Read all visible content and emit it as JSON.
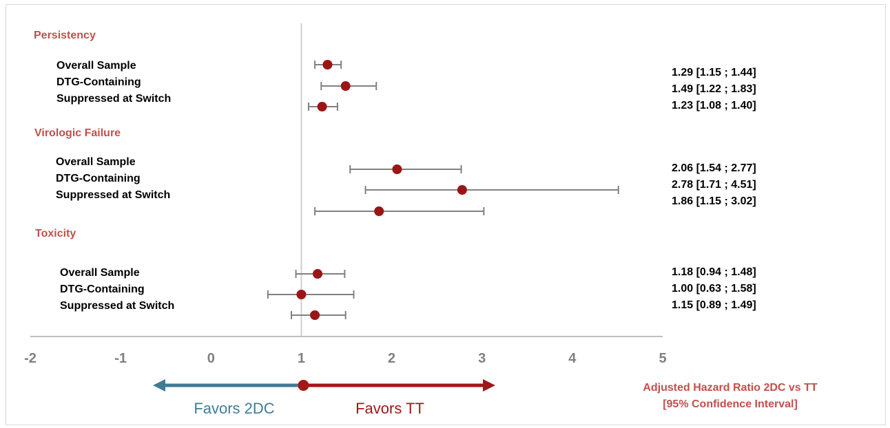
{
  "colors": {
    "point": "#9b1515",
    "whisker": "#808080",
    "axis": "#bfbfbf",
    "reference_line": "#d0d0d0",
    "category": "#c0504d",
    "favors_2dc": "#3f7b96",
    "favors_tt": "#a01818"
  },
  "chart_data": {
    "type": "scatter",
    "subtype": "forest-plot",
    "x_ticks": [
      "-2",
      "-1",
      "0",
      "1",
      "2",
      "3",
      "4",
      "5"
    ],
    "xlim": [
      -2,
      5
    ],
    "reference_value": 1,
    "groups": [
      {
        "name": "Persistency",
        "rows": [
          {
            "label": "Overall Sample",
            "estimate": 1.29,
            "lower": 1.15,
            "upper": 1.44,
            "text": "1.29  [1.15 ; 1.44]"
          },
          {
            "label": "DTG-Containing",
            "estimate": 1.49,
            "lower": 1.22,
            "upper": 1.83,
            "text": "1.49  [1.22 ; 1.83]"
          },
          {
            "label": "Suppressed at Switch",
            "estimate": 1.23,
            "lower": 1.08,
            "upper": 1.4,
            "text": "1.23  [1.08 ; 1.40]"
          }
        ]
      },
      {
        "name": "Virologic Failure",
        "rows": [
          {
            "label": "Overall Sample",
            "estimate": 2.06,
            "lower": 1.54,
            "upper": 2.77,
            "text": "2.06  [1.54 ; 2.77]"
          },
          {
            "label": "DTG-Containing",
            "estimate": 2.78,
            "lower": 1.71,
            "upper": 4.51,
            "text": "2.78  [1.71 ; 4.51]"
          },
          {
            "label": "Suppressed at Switch",
            "estimate": 1.86,
            "lower": 1.15,
            "upper": 3.02,
            "text": "1.86  [1.15 ; 3.02]"
          }
        ]
      },
      {
        "name": "Toxicity",
        "rows": [
          {
            "label": "Overall Sample",
            "estimate": 1.18,
            "lower": 0.94,
            "upper": 1.48,
            "text": "1.18  [0.94 ; 1.48]"
          },
          {
            "label": "DTG-Containing",
            "estimate": 1.0,
            "lower": 0.63,
            "upper": 1.58,
            "text": "1.00  [0.63 ; 1.58]"
          },
          {
            "label": "Suppressed at Switch",
            "estimate": 1.15,
            "lower": 0.89,
            "upper": 1.49,
            "text": "1.15  [0.89 ; 1.49]"
          }
        ]
      }
    ],
    "favors": {
      "left": "Favors 2DC",
      "right": "Favors TT"
    },
    "value_header": [
      "Adjusted Hazard Ratio 2DC vs TT",
      "[95% Confidence Interval]"
    ]
  }
}
